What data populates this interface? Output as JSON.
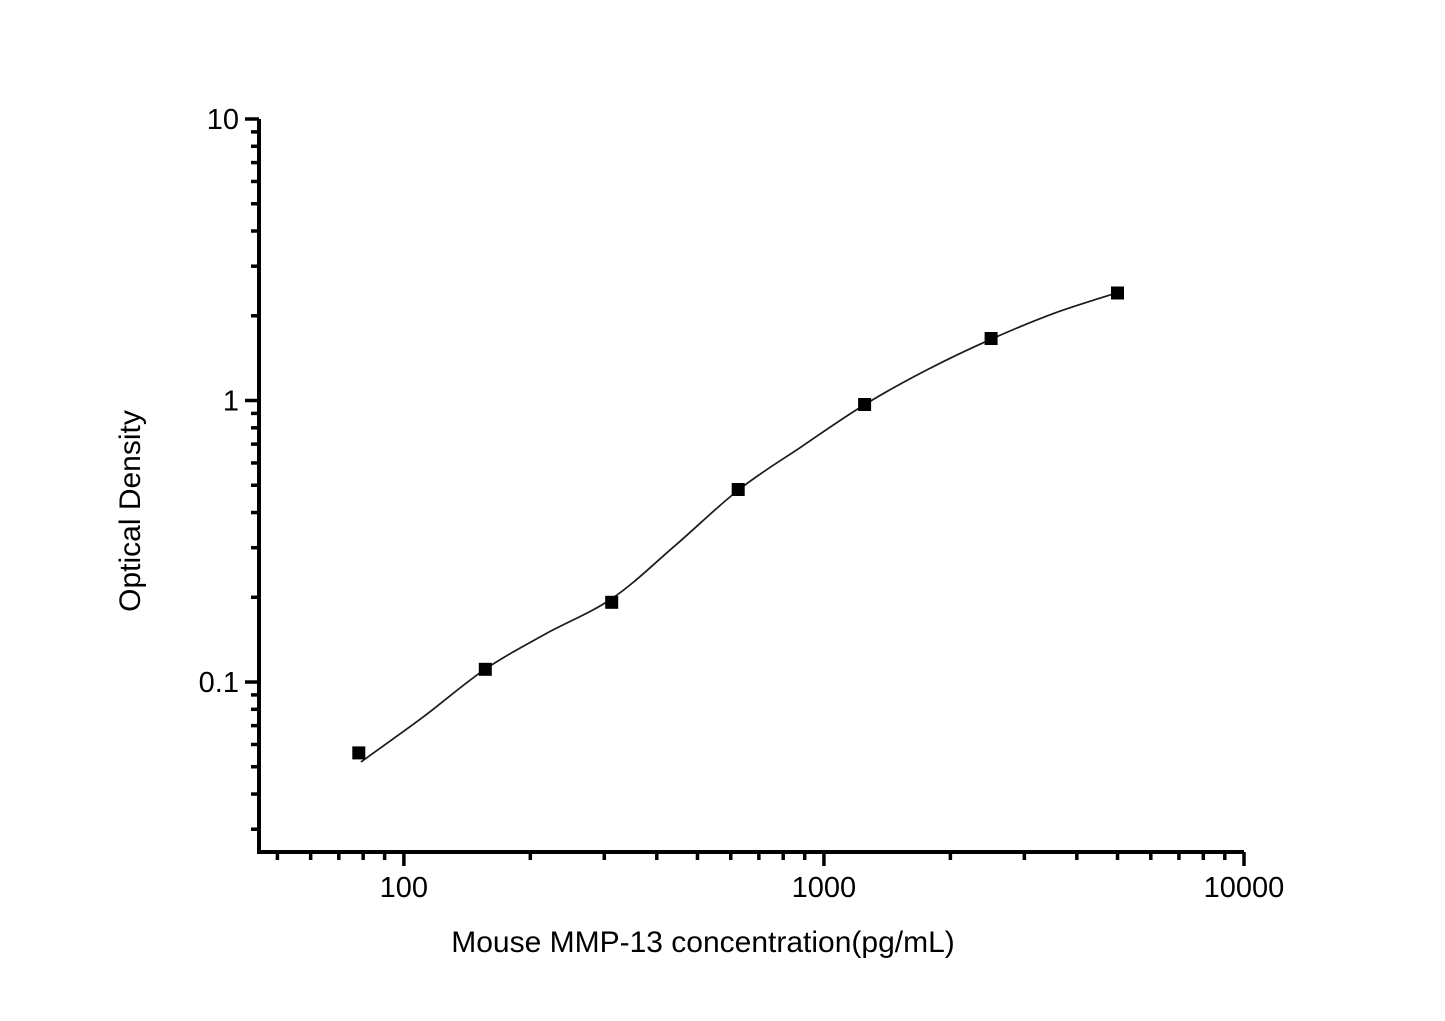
{
  "chart_data": {
    "type": "scatter",
    "title": "",
    "xlabel": "Mouse MMP-13 concentration(pg/mL)",
    "ylabel": "Optical Density",
    "x_scale": "log",
    "y_scale": "log",
    "xlim": [
      45.2,
      10000
    ],
    "ylim": [
      0.0249,
      10
    ],
    "x_major_ticks": [
      100,
      1000,
      10000
    ],
    "x_tick_labels": [
      "100",
      "1000",
      "10000"
    ],
    "y_major_ticks": [
      0.1,
      1,
      10
    ],
    "y_tick_labels": [
      "0.1",
      "1",
      "10"
    ],
    "grid": false,
    "legend": "none",
    "series": [
      {
        "name": "standard-points",
        "type": "scatter",
        "marker": "square",
        "marker_size": 13,
        "color": "#000000",
        "points": [
          [
            78.125,
            0.056
          ],
          [
            156.25,
            0.111
          ],
          [
            312.5,
            0.192
          ],
          [
            625,
            0.483
          ],
          [
            1250,
            0.968
          ],
          [
            2500,
            1.66
          ],
          [
            5000,
            2.41
          ]
        ]
      },
      {
        "name": "fit-curve",
        "type": "line",
        "color": "#1a1a1a",
        "width": 1.7,
        "points": [
          [
            79,
            0.052
          ],
          [
            111,
            0.075
          ],
          [
            156,
            0.111
          ],
          [
            217,
            0.148
          ],
          [
            313,
            0.198
          ],
          [
            442,
            0.305
          ],
          [
            628,
            0.483
          ],
          [
            886,
            0.687
          ],
          [
            1252,
            0.968
          ],
          [
            1768,
            1.29
          ],
          [
            2498,
            1.65
          ],
          [
            3529,
            2.04
          ],
          [
            5012,
            2.42
          ]
        ]
      }
    ]
  },
  "colors": {
    "background": "#ffffff",
    "axis": "#000000",
    "text": "#000000"
  }
}
